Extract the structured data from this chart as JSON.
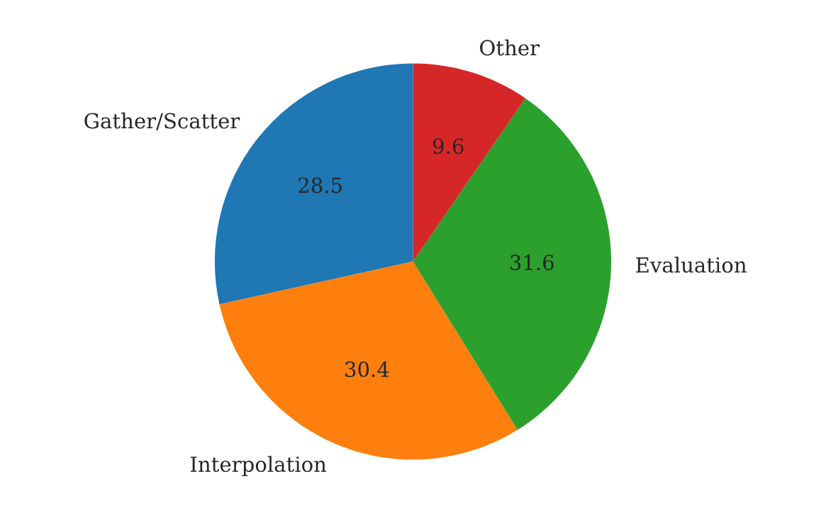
{
  "chart_data": {
    "type": "pie",
    "categories": [
      "Gather/Scatter",
      "Interpolation",
      "Evaluation",
      "Other"
    ],
    "values": [
      28.5,
      30.4,
      31.6,
      9.6
    ],
    "colors": [
      "#1f77b4",
      "#ff7f0e",
      "#2ca02c",
      "#d62728"
    ],
    "data_labels": true
  }
}
